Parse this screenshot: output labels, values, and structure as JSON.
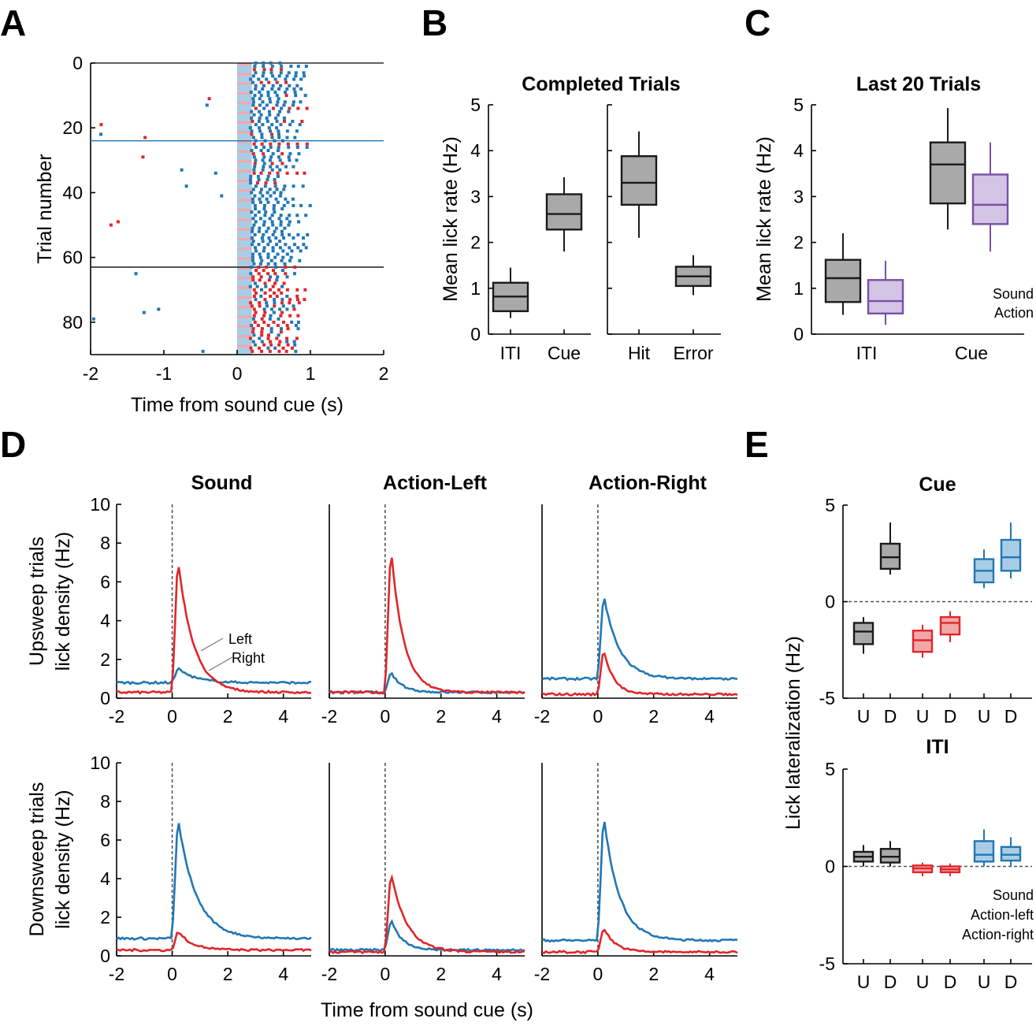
{
  "panel_letters": [
    "A",
    "B",
    "C",
    "D",
    "E"
  ],
  "colors": {
    "sound": "#1a1a1a",
    "sound_fill": "#a9a9a9",
    "action": "#7a4fa8",
    "action_fill": "#d3c4e6",
    "left": "#e0262a",
    "right": "#2077b4",
    "right_fill": "#a9cde6",
    "left_fill": "#f2a7a8"
  },
  "chart_data": [
    {
      "id": "A",
      "type": "scatter",
      "title": "",
      "xlabel": "Time from sound cue (s)",
      "ylabel": "Trial number",
      "xlim": [
        -2,
        2
      ],
      "ylim": [
        90,
        0
      ],
      "xticks": [
        "-2",
        "-1",
        "0",
        "1",
        "2"
      ],
      "yticks": [
        "0",
        "20",
        "40",
        "60",
        "80"
      ],
      "block_boundaries": [
        {
          "trial": 24,
          "color": "#2077b4"
        },
        {
          "trial": 63,
          "color": "#1a1a1a"
        }
      ],
      "note_series": "blue squares = right licks, red squares = left licks; shaded band = sound cue 0 to 0.2 s",
      "series": [
        {
          "name": "",
          "color": "#2077b4"
        },
        {
          "name": "",
          "color": "#e0262a"
        }
      ]
    },
    {
      "id": "B",
      "type": "box",
      "title": "Completed Trials",
      "ylabel": "Mean lick rate (Hz)",
      "ylim": [
        0,
        5
      ],
      "yticks": [
        "0",
        "1",
        "2",
        "3",
        "4",
        "5"
      ],
      "groups": [
        {
          "label": "ITI",
          "whisker_low": 0.35,
          "q1": 0.5,
          "median": 0.82,
          "q3": 1.12,
          "whisker_high": 1.45
        },
        {
          "label": "Cue",
          "whisker_low": 1.8,
          "q1": 2.28,
          "median": 2.62,
          "q3": 3.05,
          "whisker_high": 3.42
        },
        {
          "label": "Hit",
          "whisker_low": 2.1,
          "q1": 2.82,
          "median": 3.3,
          "q3": 3.88,
          "whisker_high": 4.42
        },
        {
          "label": "Error",
          "whisker_low": 0.85,
          "q1": 1.05,
          "median": 1.26,
          "q3": 1.47,
          "whisker_high": 1.72
        }
      ]
    },
    {
      "id": "C",
      "type": "box",
      "title": "Last 20 Trials",
      "ylabel": "Mean lick rate (Hz)",
      "ylim": [
        0,
        5
      ],
      "yticks": [
        "0",
        "1",
        "2",
        "3",
        "4",
        "5"
      ],
      "categories": [
        "ITI",
        "Cue"
      ],
      "legend": [
        "Sound",
        "Action"
      ],
      "series": [
        {
          "name": "Sound",
          "boxes": [
            {
              "whisker_low": 0.42,
              "q1": 0.7,
              "median": 1.22,
              "q3": 1.62,
              "whisker_high": 2.2
            },
            {
              "whisker_low": 2.28,
              "q1": 2.85,
              "median": 3.7,
              "q3": 4.18,
              "whisker_high": 4.93
            }
          ]
        },
        {
          "name": "Action",
          "boxes": [
            {
              "whisker_low": 0.2,
              "q1": 0.45,
              "median": 0.72,
              "q3": 1.18,
              "whisker_high": 1.6
            },
            {
              "whisker_low": 1.8,
              "q1": 2.4,
              "median": 2.82,
              "q3": 3.48,
              "whisker_high": 4.18
            }
          ]
        }
      ]
    },
    {
      "id": "D",
      "type": "line",
      "xlabel": "Time from sound cue (s)",
      "ylabel_rows": [
        "Upsweep trials\nlick density (Hz)",
        "Downsweep trials\nlick density (Hz)"
      ],
      "column_titles": [
        "Sound",
        "Action-Left",
        "Action-Right"
      ],
      "xlim": [
        -2,
        5
      ],
      "ylim": [
        0,
        10
      ],
      "xticks": [
        "-2",
        "0",
        "2",
        "4"
      ],
      "yticks": [
        "0",
        "2",
        "4",
        "6",
        "8",
        "10"
      ],
      "legend": [
        "Left",
        "Right"
      ],
      "series": [
        {
          "name": "Left",
          "peak_time": 0.25
        },
        {
          "name": "Right",
          "peak_time": 0.3
        }
      ],
      "panels": [
        {
          "row": 0,
          "col": 0,
          "left": {
            "base": 0.3,
            "peak": 7.3,
            "tau": 0.55
          },
          "right": {
            "base": 0.8,
            "peak": 1.55,
            "tau": 0.6
          }
        },
        {
          "row": 0,
          "col": 1,
          "left": {
            "base": 0.3,
            "peak": 7.9,
            "tau": 0.45
          },
          "right": {
            "base": 0.3,
            "peak": 1.35,
            "tau": 0.4
          }
        },
        {
          "row": 0,
          "col": 2,
          "left": {
            "base": 0.2,
            "peak": 2.6,
            "tau": 0.35
          },
          "right": {
            "base": 1.0,
            "peak": 5.4,
            "tau": 0.55
          }
        },
        {
          "row": 1,
          "col": 0,
          "left": {
            "base": 0.3,
            "peak": 1.3,
            "tau": 0.5
          },
          "right": {
            "base": 0.9,
            "peak": 7.2,
            "tau": 0.65
          }
        },
        {
          "row": 1,
          "col": 1,
          "left": {
            "base": 0.2,
            "peak": 4.4,
            "tau": 0.55
          },
          "right": {
            "base": 0.3,
            "peak": 1.9,
            "tau": 0.4
          }
        },
        {
          "row": 1,
          "col": 2,
          "left": {
            "base": 0.2,
            "peak": 1.5,
            "tau": 0.4
          },
          "right": {
            "base": 0.8,
            "peak": 7.4,
            "tau": 0.55
          }
        }
      ]
    },
    {
      "id": "E",
      "type": "box",
      "ylabel": "Lick lateralization (Hz)",
      "ylim": [
        -5,
        5
      ],
      "yticks": [
        "5",
        "0",
        "-5"
      ],
      "categories": [
        "U",
        "D",
        "U",
        "D",
        "U",
        "D"
      ],
      "legend": [
        "Sound",
        "Action-left",
        "Action-right"
      ],
      "subpanels": [
        {
          "title": "Cue",
          "boxes": [
            {
              "group": "Sound",
              "label": "U",
              "whisker_low": -2.7,
              "q1": -2.2,
              "median": -1.55,
              "q3": -1.1,
              "whisker_high": -0.8
            },
            {
              "group": "Sound",
              "label": "D",
              "whisker_low": 1.4,
              "q1": 1.7,
              "median": 2.3,
              "q3": 3.0,
              "whisker_high": 4.1
            },
            {
              "group": "Action-left",
              "label": "U",
              "whisker_low": -2.9,
              "q1": -2.6,
              "median": -2.0,
              "q3": -1.5,
              "whisker_high": -1.2
            },
            {
              "group": "Action-left",
              "label": "D",
              "whisker_low": -2.1,
              "q1": -1.7,
              "median": -1.1,
              "q3": -0.8,
              "whisker_high": -0.5
            },
            {
              "group": "Action-right",
              "label": "U",
              "whisker_low": 0.7,
              "q1": 1.0,
              "median": 1.6,
              "q3": 2.2,
              "whisker_high": 2.7
            },
            {
              "group": "Action-right",
              "label": "D",
              "whisker_low": 1.2,
              "q1": 1.6,
              "median": 2.3,
              "q3": 3.2,
              "whisker_high": 4.1
            }
          ]
        },
        {
          "title": "ITI",
          "boxes": [
            {
              "group": "Sound",
              "label": "U",
              "whisker_low": 0.0,
              "q1": 0.25,
              "median": 0.5,
              "q3": 0.75,
              "whisker_high": 1.1
            },
            {
              "group": "Sound",
              "label": "D",
              "whisker_low": 0.0,
              "q1": 0.2,
              "median": 0.5,
              "q3": 0.9,
              "whisker_high": 1.3
            },
            {
              "group": "Action-left",
              "label": "U",
              "whisker_low": -0.5,
              "q1": -0.3,
              "median": -0.1,
              "q3": 0.05,
              "whisker_high": 0.2
            },
            {
              "group": "Action-left",
              "label": "D",
              "whisker_low": -0.5,
              "q1": -0.3,
              "median": -0.15,
              "q3": 0.0,
              "whisker_high": 0.15
            },
            {
              "group": "Action-right",
              "label": "U",
              "whisker_low": 0.0,
              "q1": 0.25,
              "median": 0.6,
              "q3": 1.3,
              "whisker_high": 1.9
            },
            {
              "group": "Action-right",
              "label": "D",
              "whisker_low": 0.0,
              "q1": 0.3,
              "median": 0.6,
              "q3": 1.0,
              "whisker_high": 1.5
            }
          ]
        }
      ]
    }
  ]
}
